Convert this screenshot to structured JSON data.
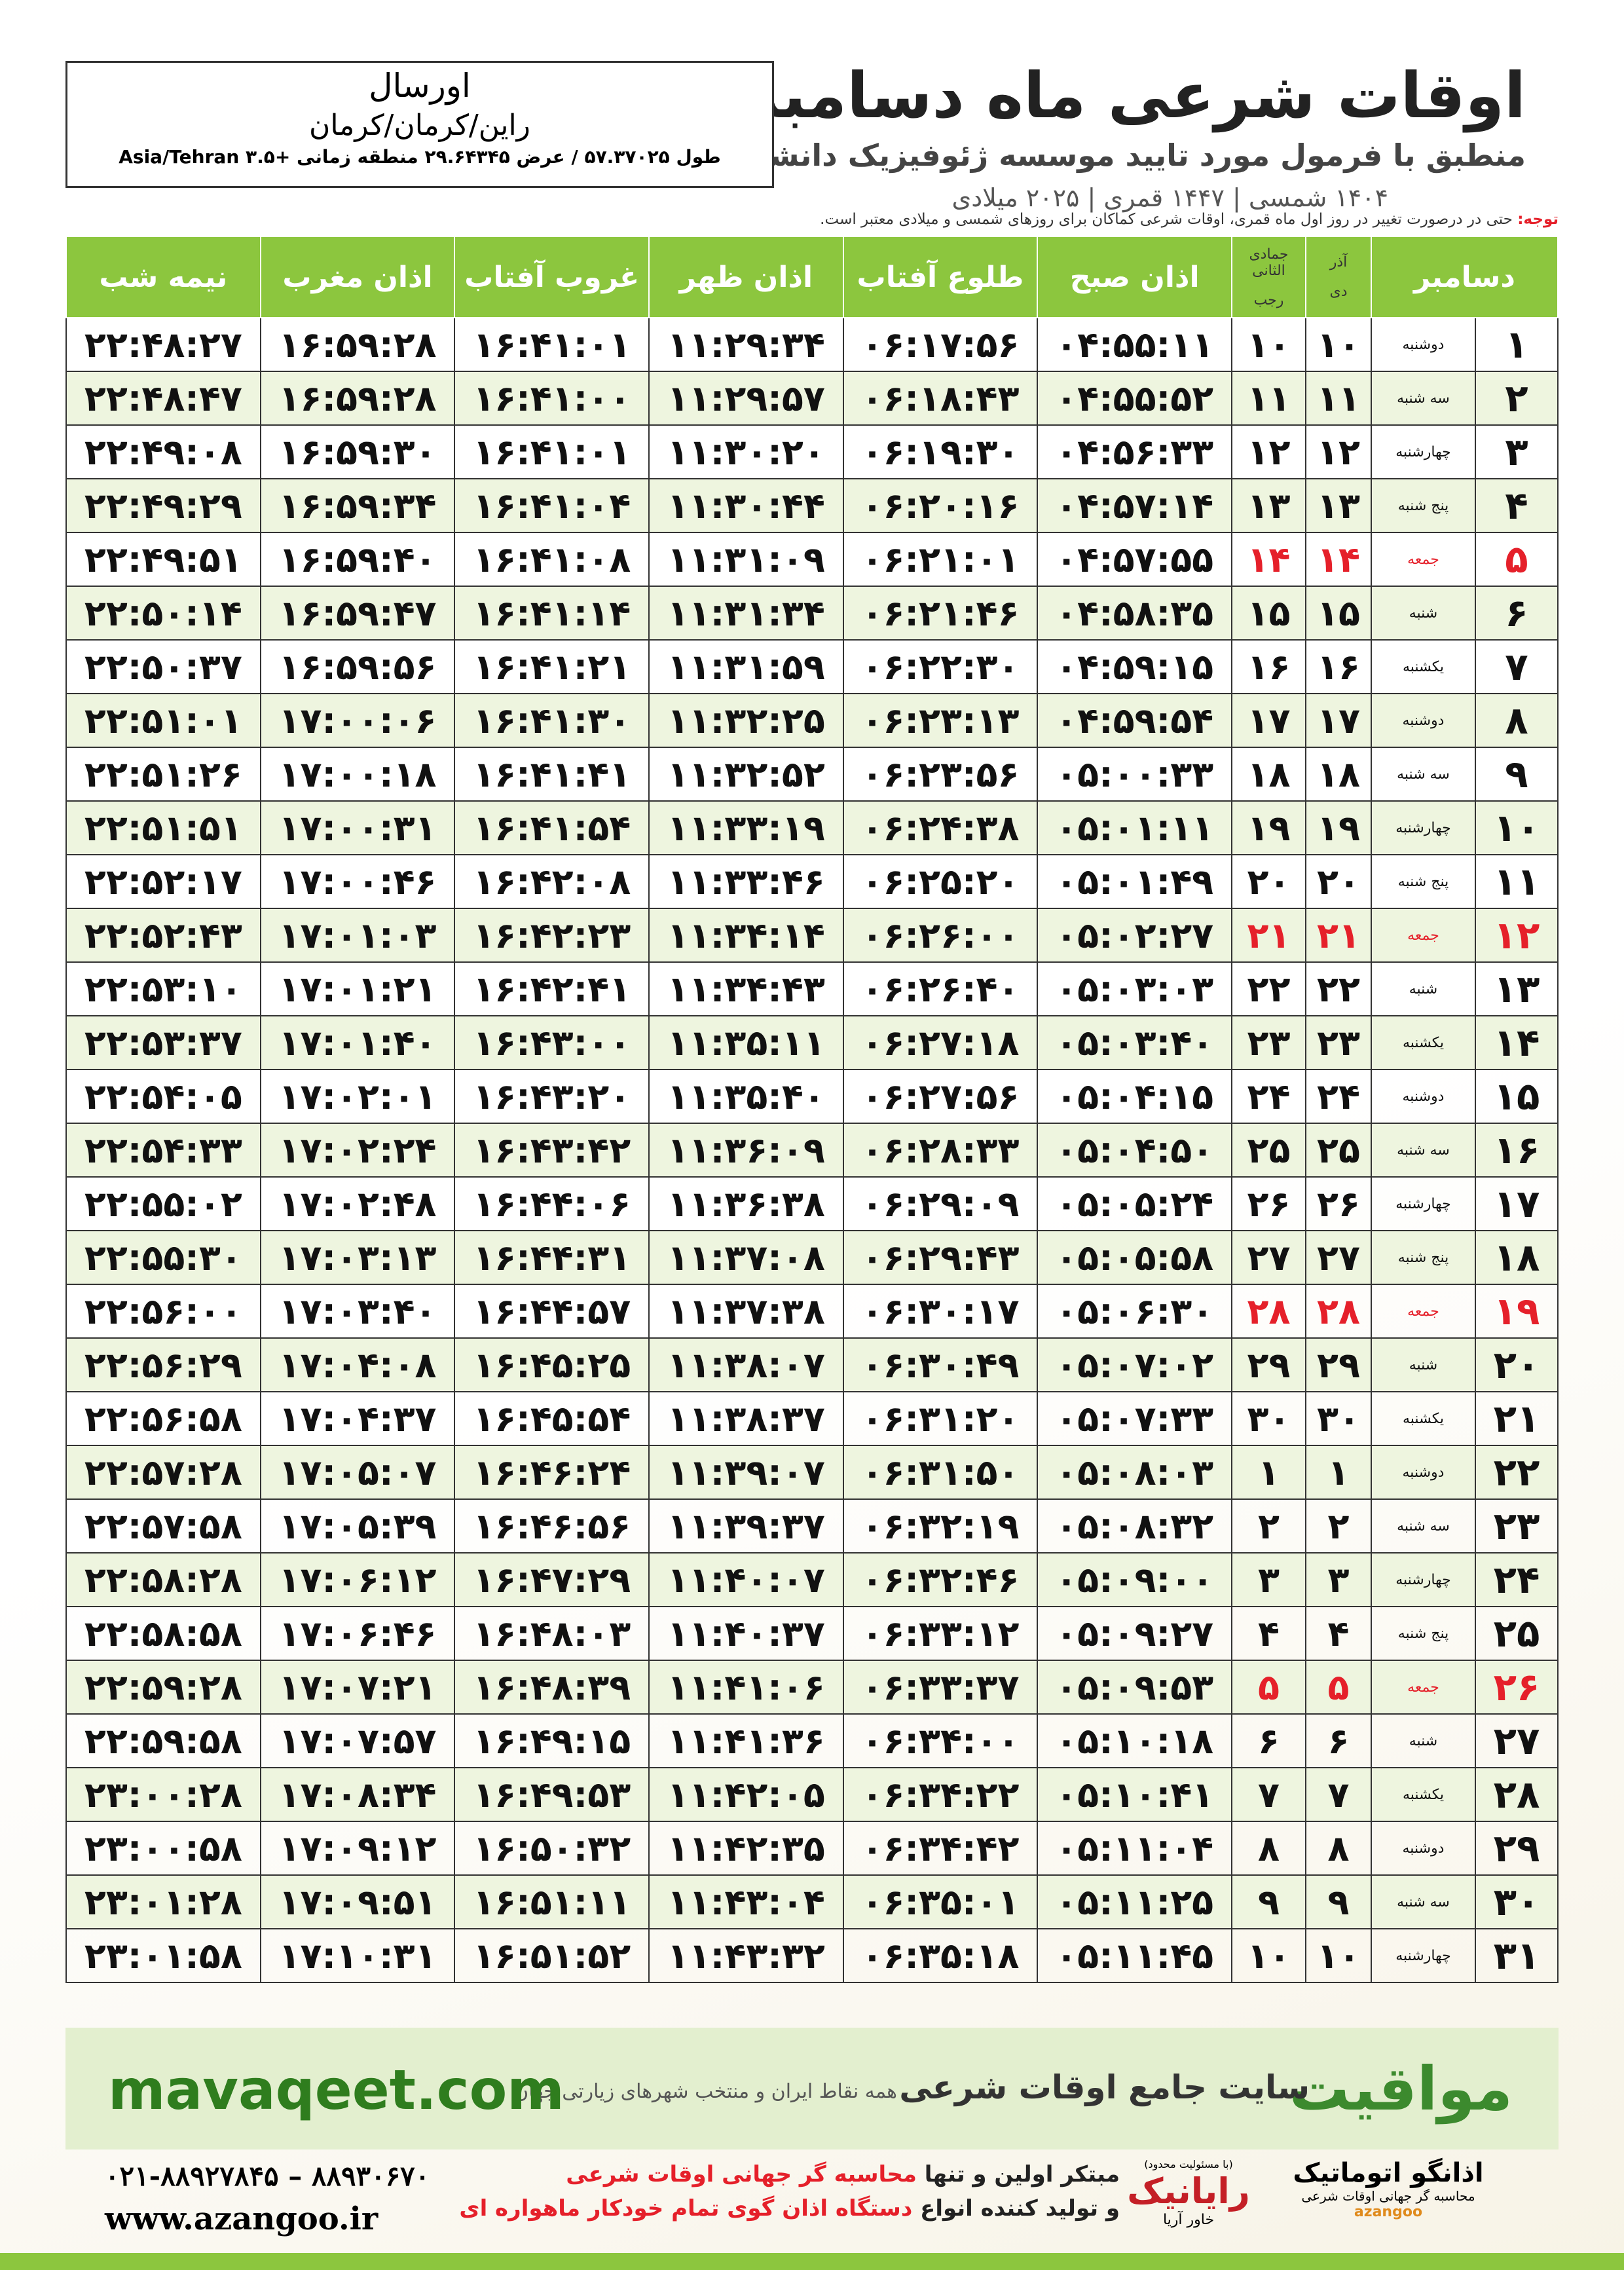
{
  "header": {
    "title": "اوقات شرعی ماه دسامبر",
    "subtitle": "منطبق با فرمول مورد تایید موسسه ژئوفیزیک دانشگاه تهران",
    "dates": "۱۴۰۴ شمسی | ۱۴۴۷ قمری | ۲۰۲۵ میلادی"
  },
  "location": {
    "name": "اورسال",
    "region": "راین/کرمان/کرمان",
    "coords": "طول ۵۷.۳۷۰۲۵ / عرض ۲۹.۶۴۳۴۵ منطقه زمانی +۳.۵ Asia/Tehran"
  },
  "note": {
    "label": "توجه:",
    "text": "حتی در درصورت تغییر در روز اول ماه قمری، اوقات شرعی کماکان برای روزهای شمسی و میلادی معتبر است."
  },
  "table": {
    "header_color": "#8cc63e",
    "holiday_color": "#e5202a",
    "columns": [
      "دسامبر",
      {
        "top": "آذر",
        "bottom": "دی"
      },
      {
        "top": "جمادی الثانی",
        "bottom": "رجب"
      },
      "اذان صبح",
      "طلوع آفتاب",
      "اذان ظهر",
      "غروب آفتاب",
      "اذان مغرب",
      "نیمه شب"
    ],
    "rows": [
      {
        "cells": [
          "۱",
          "دوشنبه",
          "۱۰",
          "۱۰",
          "۰۴:۵۵:۱۱",
          "۰۶:۱۷:۵۶",
          "۱۱:۲۹:۳۴",
          "۱۶:۴۱:۰۱",
          "۱۶:۵۹:۲۸",
          "۲۲:۴۸:۲۷"
        ]
      },
      {
        "cells": [
          "۲",
          "سه شنبه",
          "۱۱",
          "۱۱",
          "۰۴:۵۵:۵۲",
          "۰۶:۱۸:۴۳",
          "۱۱:۲۹:۵۷",
          "۱۶:۴۱:۰۰",
          "۱۶:۵۹:۲۸",
          "۲۲:۴۸:۴۷"
        ]
      },
      {
        "cells": [
          "۳",
          "چهارشنبه",
          "۱۲",
          "۱۲",
          "۰۴:۵۶:۳۳",
          "۰۶:۱۹:۳۰",
          "۱۱:۳۰:۲۰",
          "۱۶:۴۱:۰۱",
          "۱۶:۵۹:۳۰",
          "۲۲:۴۹:۰۸"
        ]
      },
      {
        "cells": [
          "۴",
          "پنج شنبه",
          "۱۳",
          "۱۳",
          "۰۴:۵۷:۱۴",
          "۰۶:۲۰:۱۶",
          "۱۱:۳۰:۴۴",
          "۱۶:۴۱:۰۴",
          "۱۶:۵۹:۳۴",
          "۲۲:۴۹:۲۹"
        ]
      },
      {
        "cells": [
          "۵",
          "جمعه",
          "۱۴",
          "۱۴",
          "۰۴:۵۷:۵۵",
          "۰۶:۲۱:۰۱",
          "۱۱:۳۱:۰۹",
          "۱۶:۴۱:۰۸",
          "۱۶:۵۹:۴۰",
          "۲۲:۴۹:۵۱"
        ],
        "holiday": true
      },
      {
        "cells": [
          "۶",
          "شنبه",
          "۱۵",
          "۱۵",
          "۰۴:۵۸:۳۵",
          "۰۶:۲۱:۴۶",
          "۱۱:۳۱:۳۴",
          "۱۶:۴۱:۱۴",
          "۱۶:۵۹:۴۷",
          "۲۲:۵۰:۱۴"
        ]
      },
      {
        "cells": [
          "۷",
          "یکشنبه",
          "۱۶",
          "۱۶",
          "۰۴:۵۹:۱۵",
          "۰۶:۲۲:۳۰",
          "۱۱:۳۱:۵۹",
          "۱۶:۴۱:۲۱",
          "۱۶:۵۹:۵۶",
          "۲۲:۵۰:۳۷"
        ]
      },
      {
        "cells": [
          "۸",
          "دوشنبه",
          "۱۷",
          "۱۷",
          "۰۴:۵۹:۵۴",
          "۰۶:۲۳:۱۳",
          "۱۱:۳۲:۲۵",
          "۱۶:۴۱:۳۰",
          "۱۷:۰۰:۰۶",
          "۲۲:۵۱:۰۱"
        ]
      },
      {
        "cells": [
          "۹",
          "سه شنبه",
          "۱۸",
          "۱۸",
          "۰۵:۰۰:۳۳",
          "۰۶:۲۳:۵۶",
          "۱۱:۳۲:۵۲",
          "۱۶:۴۱:۴۱",
          "۱۷:۰۰:۱۸",
          "۲۲:۵۱:۲۶"
        ]
      },
      {
        "cells": [
          "۱۰",
          "چهارشنبه",
          "۱۹",
          "۱۹",
          "۰۵:۰۱:۱۱",
          "۰۶:۲۴:۳۸",
          "۱۱:۳۳:۱۹",
          "۱۶:۴۱:۵۴",
          "۱۷:۰۰:۳۱",
          "۲۲:۵۱:۵۱"
        ]
      },
      {
        "cells": [
          "۱۱",
          "پنج شنبه",
          "۲۰",
          "۲۰",
          "۰۵:۰۱:۴۹",
          "۰۶:۲۵:۲۰",
          "۱۱:۳۳:۴۶",
          "۱۶:۴۲:۰۸",
          "۱۷:۰۰:۴۶",
          "۲۲:۵۲:۱۷"
        ]
      },
      {
        "cells": [
          "۱۲",
          "جمعه",
          "۲۱",
          "۲۱",
          "۰۵:۰۲:۲۷",
          "۰۶:۲۶:۰۰",
          "۱۱:۳۴:۱۴",
          "۱۶:۴۲:۲۳",
          "۱۷:۰۱:۰۳",
          "۲۲:۵۲:۴۳"
        ],
        "holiday": true
      },
      {
        "cells": [
          "۱۳",
          "شنبه",
          "۲۲",
          "۲۲",
          "۰۵:۰۳:۰۳",
          "۰۶:۲۶:۴۰",
          "۱۱:۳۴:۴۳",
          "۱۶:۴۲:۴۱",
          "۱۷:۰۱:۲۱",
          "۲۲:۵۳:۱۰"
        ]
      },
      {
        "cells": [
          "۱۴",
          "یکشنبه",
          "۲۳",
          "۲۳",
          "۰۵:۰۳:۴۰",
          "۰۶:۲۷:۱۸",
          "۱۱:۳۵:۱۱",
          "۱۶:۴۳:۰۰",
          "۱۷:۰۱:۴۰",
          "۲۲:۵۳:۳۷"
        ]
      },
      {
        "cells": [
          "۱۵",
          "دوشنبه",
          "۲۴",
          "۲۴",
          "۰۵:۰۴:۱۵",
          "۰۶:۲۷:۵۶",
          "۱۱:۳۵:۴۰",
          "۱۶:۴۳:۲۰",
          "۱۷:۰۲:۰۱",
          "۲۲:۵۴:۰۵"
        ]
      },
      {
        "cells": [
          "۱۶",
          "سه شنبه",
          "۲۵",
          "۲۵",
          "۰۵:۰۴:۵۰",
          "۰۶:۲۸:۳۳",
          "۱۱:۳۶:۰۹",
          "۱۶:۴۳:۴۲",
          "۱۷:۰۲:۲۴",
          "۲۲:۵۴:۳۳"
        ]
      },
      {
        "cells": [
          "۱۷",
          "چهارشنبه",
          "۲۶",
          "۲۶",
          "۰۵:۰۵:۲۴",
          "۰۶:۲۹:۰۹",
          "۱۱:۳۶:۳۸",
          "۱۶:۴۴:۰۶",
          "۱۷:۰۲:۴۸",
          "۲۲:۵۵:۰۲"
        ]
      },
      {
        "cells": [
          "۱۸",
          "پنج شنبه",
          "۲۷",
          "۲۷",
          "۰۵:۰۵:۵۸",
          "۰۶:۲۹:۴۳",
          "۱۱:۳۷:۰۸",
          "۱۶:۴۴:۳۱",
          "۱۷:۰۳:۱۳",
          "۲۲:۵۵:۳۰"
        ]
      },
      {
        "cells": [
          "۱۹",
          "جمعه",
          "۲۸",
          "۲۸",
          "۰۵:۰۶:۳۰",
          "۰۶:۳۰:۱۷",
          "۱۱:۳۷:۳۸",
          "۱۶:۴۴:۵۷",
          "۱۷:۰۳:۴۰",
          "۲۲:۵۶:۰۰"
        ],
        "holiday": true
      },
      {
        "cells": [
          "۲۰",
          "شنبه",
          "۲۹",
          "۲۹",
          "۰۵:۰۷:۰۲",
          "۰۶:۳۰:۴۹",
          "۱۱:۳۸:۰۷",
          "۱۶:۴۵:۲۵",
          "۱۷:۰۴:۰۸",
          "۲۲:۵۶:۲۹"
        ]
      },
      {
        "cells": [
          "۲۱",
          "یکشنبه",
          "۳۰",
          "۳۰",
          "۰۵:۰۷:۳۳",
          "۰۶:۳۱:۲۰",
          "۱۱:۳۸:۳۷",
          "۱۶:۴۵:۵۴",
          "۱۷:۰۴:۳۷",
          "۲۲:۵۶:۵۸"
        ]
      },
      {
        "cells": [
          "۲۲",
          "دوشنبه",
          "۱",
          "۱",
          "۰۵:۰۸:۰۳",
          "۰۶:۳۱:۵۰",
          "۱۱:۳۹:۰۷",
          "۱۶:۴۶:۲۴",
          "۱۷:۰۵:۰۷",
          "۲۲:۵۷:۲۸"
        ]
      },
      {
        "cells": [
          "۲۳",
          "سه شنبه",
          "۲",
          "۲",
          "۰۵:۰۸:۳۲",
          "۰۶:۳۲:۱۹",
          "۱۱:۳۹:۳۷",
          "۱۶:۴۶:۵۶",
          "۱۷:۰۵:۳۹",
          "۲۲:۵۷:۵۸"
        ]
      },
      {
        "cells": [
          "۲۴",
          "چهارشنبه",
          "۳",
          "۳",
          "۰۵:۰۹:۰۰",
          "۰۶:۳۲:۴۶",
          "۱۱:۴۰:۰۷",
          "۱۶:۴۷:۲۹",
          "۱۷:۰۶:۱۲",
          "۲۲:۵۸:۲۸"
        ]
      },
      {
        "cells": [
          "۲۵",
          "پنج شنبه",
          "۴",
          "۴",
          "۰۵:۰۹:۲۷",
          "۰۶:۳۳:۱۲",
          "۱۱:۴۰:۳۷",
          "۱۶:۴۸:۰۳",
          "۱۷:۰۶:۴۶",
          "۲۲:۵۸:۵۸"
        ]
      },
      {
        "cells": [
          "۲۶",
          "جمعه",
          "۵",
          "۵",
          "۰۵:۰۹:۵۳",
          "۰۶:۳۳:۳۷",
          "۱۱:۴۱:۰۶",
          "۱۶:۴۸:۳۹",
          "۱۷:۰۷:۲۱",
          "۲۲:۵۹:۲۸"
        ],
        "holiday": true
      },
      {
        "cells": [
          "۲۷",
          "شنبه",
          "۶",
          "۶",
          "۰۵:۱۰:۱۸",
          "۰۶:۳۴:۰۰",
          "۱۱:۴۱:۳۶",
          "۱۶:۴۹:۱۵",
          "۱۷:۰۷:۵۷",
          "۲۲:۵۹:۵۸"
        ]
      },
      {
        "cells": [
          "۲۸",
          "یکشنبه",
          "۷",
          "۷",
          "۰۵:۱۰:۴۱",
          "۰۶:۳۴:۲۲",
          "۱۱:۴۲:۰۵",
          "۱۶:۴۹:۵۳",
          "۱۷:۰۸:۳۴",
          "۲۳:۰۰:۲۸"
        ]
      },
      {
        "cells": [
          "۲۹",
          "دوشنبه",
          "۸",
          "۸",
          "۰۵:۱۱:۰۴",
          "۰۶:۳۴:۴۲",
          "۱۱:۴۲:۳۵",
          "۱۶:۵۰:۳۲",
          "۱۷:۰۹:۱۲",
          "۲۳:۰۰:۵۸"
        ]
      },
      {
        "cells": [
          "۳۰",
          "سه شنبه",
          "۹",
          "۹",
          "۰۵:۱۱:۲۵",
          "۰۶:۳۵:۰۱",
          "۱۱:۴۳:۰۴",
          "۱۶:۵۱:۱۱",
          "۱۷:۰۹:۵۱",
          "۲۳:۰۱:۲۸"
        ]
      },
      {
        "cells": [
          "۳۱",
          "چهارشنبه",
          "۱۰",
          "۱۰",
          "۰۵:۱۱:۴۵",
          "۰۶:۳۵:۱۸",
          "۱۱:۴۳:۳۲",
          "۱۶:۵۱:۵۲",
          "۱۷:۱۰:۳۱",
          "۲۳:۰۱:۵۸"
        ]
      }
    ]
  },
  "banner": {
    "brand": "مواقیت",
    "tagline": "سایت جامع اوقات شرعی",
    "sub": "همه نقاط ایران و منتخب شهرهای زیارتی جهان",
    "site": "mavaqeet.com"
  },
  "footer": {
    "phone": "۰۲۱-۸۸۹۲۷۸۴۵ – ۸۸۹۳۰۶۷۰",
    "url": "www.azangoo.ir",
    "line1": {
      "start": "مبتکر اولین و تنها",
      "red": "محاسبه گر جهانی اوقات شرعی"
    },
    "line2": {
      "start": "و تولید کننده انواع",
      "red": "دستگاه اذان گوی تمام خودکار ماهواره ای"
    },
    "logo1": {
      "note": "(با مسئولیت محدود)",
      "name": "رایانیک",
      "sub": "خاور آریا"
    },
    "logo2": {
      "name": "اذانگو اتوماتیک",
      "sub": "محاسبه گر جهانی اوقات شرعی",
      "en": "azangoo"
    }
  }
}
